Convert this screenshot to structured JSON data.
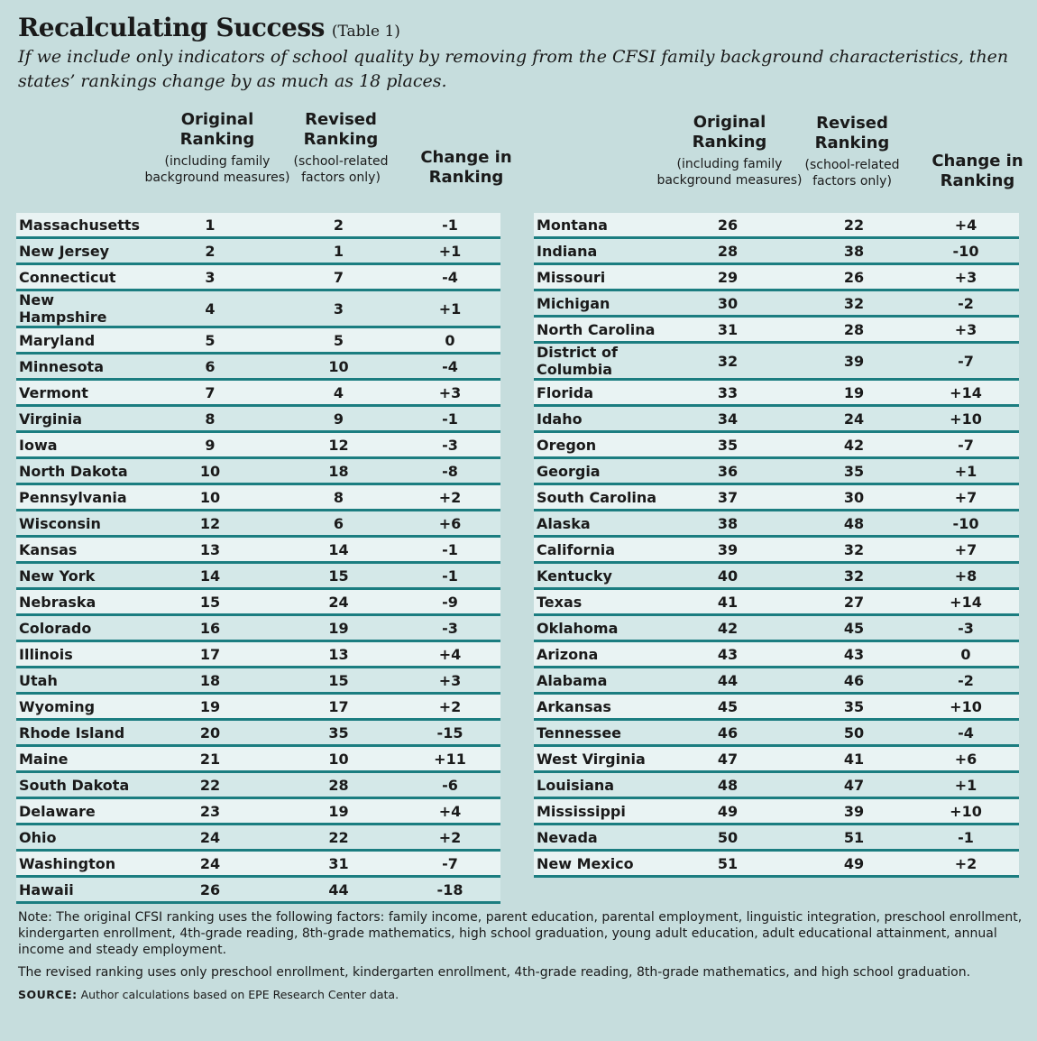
{
  "title": "Recalculating Success",
  "title_suffix": "(Table 1)",
  "subtitle": "If we include only indicators of school quality by removing from the CFSI family background characteristics, then states’ rankings change by as much as 18 places.",
  "headers": {
    "original_main": "Original Ranking",
    "original_sub": "(including family background measures)",
    "revised_main": "Revised Ranking",
    "revised_sub": "(school-related factors only)",
    "change_main": "Change in Ranking"
  },
  "left_rows": [
    {
      "state": "Massachusetts",
      "original": "1",
      "revised": "2",
      "change": "-1"
    },
    {
      "state": "New Jersey",
      "original": "2",
      "revised": "1",
      "change": "+1"
    },
    {
      "state": "Connecticut",
      "original": "3",
      "revised": "7",
      "change": "-4"
    },
    {
      "state": "New Hampshire",
      "original": "4",
      "revised": "3",
      "change": "+1"
    },
    {
      "state": "Maryland",
      "original": "5",
      "revised": "5",
      "change": "0"
    },
    {
      "state": "Minnesota",
      "original": "6",
      "revised": "10",
      "change": "-4"
    },
    {
      "state": "Vermont",
      "original": "7",
      "revised": "4",
      "change": "+3"
    },
    {
      "state": "Virginia",
      "original": "8",
      "revised": "9",
      "change": "-1"
    },
    {
      "state": "Iowa",
      "original": "9",
      "revised": "12",
      "change": "-3"
    },
    {
      "state": "North Dakota",
      "original": "10",
      "revised": "18",
      "change": "-8"
    },
    {
      "state": "Pennsylvania",
      "original": "10",
      "revised": "8",
      "change": "+2"
    },
    {
      "state": "Wisconsin",
      "original": "12",
      "revised": "6",
      "change": "+6"
    },
    {
      "state": "Kansas",
      "original": "13",
      "revised": "14",
      "change": "-1"
    },
    {
      "state": "New York",
      "original": "14",
      "revised": "15",
      "change": "-1"
    },
    {
      "state": "Nebraska",
      "original": "15",
      "revised": "24",
      "change": "-9"
    },
    {
      "state": "Colorado",
      "original": "16",
      "revised": "19",
      "change": "-3"
    },
    {
      "state": "Illinois",
      "original": "17",
      "revised": "13",
      "change": "+4"
    },
    {
      "state": "Utah",
      "original": "18",
      "revised": "15",
      "change": "+3"
    },
    {
      "state": "Wyoming",
      "original": "19",
      "revised": "17",
      "change": "+2"
    },
    {
      "state": "Rhode Island",
      "original": "20",
      "revised": "35",
      "change": "-15"
    },
    {
      "state": "Maine",
      "original": "21",
      "revised": "10",
      "change": "+11"
    },
    {
      "state": "South Dakota",
      "original": "22",
      "revised": "28",
      "change": "-6"
    },
    {
      "state": "Delaware",
      "original": "23",
      "revised": "19",
      "change": "+4"
    },
    {
      "state": "Ohio",
      "original": "24",
      "revised": "22",
      "change": "+2"
    },
    {
      "state": "Washington",
      "original": "24",
      "revised": "31",
      "change": "-7"
    },
    {
      "state": "Hawaii",
      "original": "26",
      "revised": "44",
      "change": "-18"
    }
  ],
  "right_rows": [
    {
      "state": "Montana",
      "original": "26",
      "revised": "22",
      "change": "+4"
    },
    {
      "state": "Indiana",
      "original": "28",
      "revised": "38",
      "change": "-10"
    },
    {
      "state": "Missouri",
      "original": "29",
      "revised": "26",
      "change": "+3"
    },
    {
      "state": "Michigan",
      "original": "30",
      "revised": "32",
      "change": "-2"
    },
    {
      "state": "North Carolina",
      "original": "31",
      "revised": "28",
      "change": "+3"
    },
    {
      "state": "District of Columbia",
      "original": "32",
      "revised": "39",
      "change": "-7"
    },
    {
      "state": "Florida",
      "original": "33",
      "revised": "19",
      "change": "+14"
    },
    {
      "state": "Idaho",
      "original": "34",
      "revised": "24",
      "change": "+10"
    },
    {
      "state": "Oregon",
      "original": "35",
      "revised": "42",
      "change": "-7"
    },
    {
      "state": "Georgia",
      "original": "36",
      "revised": "35",
      "change": "+1"
    },
    {
      "state": "South Carolina",
      "original": "37",
      "revised": "30",
      "change": "+7"
    },
    {
      "state": "Alaska",
      "original": "38",
      "revised": "48",
      "change": "-10"
    },
    {
      "state": "California",
      "original": "39",
      "revised": "32",
      "change": "+7"
    },
    {
      "state": "Kentucky",
      "original": "40",
      "revised": "32",
      "change": "+8"
    },
    {
      "state": "Texas",
      "original": "41",
      "revised": "27",
      "change": "+14"
    },
    {
      "state": "Oklahoma",
      "original": "42",
      "revised": "45",
      "change": "-3"
    },
    {
      "state": "Arizona",
      "original": "43",
      "revised": "43",
      "change": "0"
    },
    {
      "state": "Alabama",
      "original": "44",
      "revised": "46",
      "change": "-2"
    },
    {
      "state": "Arkansas",
      "original": "45",
      "revised": "35",
      "change": "+10"
    },
    {
      "state": "Tennessee",
      "original": "46",
      "revised": "50",
      "change": "-4"
    },
    {
      "state": "West Virginia",
      "original": "47",
      "revised": "41",
      "change": "+6"
    },
    {
      "state": "Louisiana",
      "original": "48",
      "revised": "47",
      "change": "+1"
    },
    {
      "state": "Mississippi",
      "original": "49",
      "revised": "39",
      "change": "+10"
    },
    {
      "state": "Nevada",
      "original": "50",
      "revised": "51",
      "change": "-1"
    },
    {
      "state": "New Mexico",
      "original": "51",
      "revised": "49",
      "change": "+2"
    }
  ],
  "note": "Note: The original CFSI ranking uses the following factors: family income, parent education, parental employment, linguistic integration, preschool enrollment, kindergarten enrollment, 4th-grade reading, 8th-grade mathematics, high school graduation, young adult education, adult educational attainment, annual income and steady employment.",
  "revised_note": "The revised ranking uses only preschool enrollment, kindergarten enrollment, 4th-grade reading, 8th-grade mathematics, and high school graduation.",
  "source_label": "SOURCE:",
  "source_text": " Author calculations based on EPE Research Center data."
}
